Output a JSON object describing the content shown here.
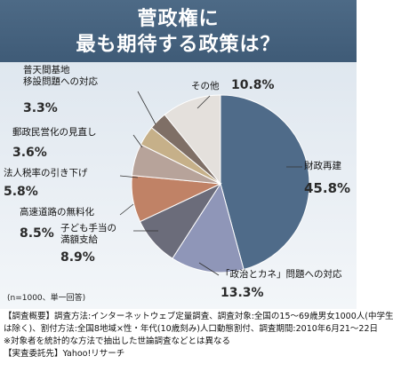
{
  "header": {
    "line1": "菅政権に",
    "line2": "最も期待する政策は？"
  },
  "colors": {
    "header_bg": "#46627f",
    "slice_fills": [
      "#4f6b89",
      "#8f96b8",
      "#6b6c7a",
      "#c08266",
      "#b7a39a",
      "#c6b089",
      "#7f6f66",
      "#e4e0dc"
    ],
    "percent_text": "#2a2a2a"
  },
  "note": "(n=1000、単一回答)",
  "footer": {
    "line1": "【調査概要】調査方法:インターネットウェブ定量調査、調査対象:全国の15〜69歳男女1000人(中学生",
    "line2": "は除く)、割付方法:全国8地域×性・年代(10歳刻み)人口動態割付、調査期間:2010年6月21〜22日",
    "line3": "※対象者を統計的な方法で抽出した世論調査などとは異なる",
    "line4": "【実査委託先】Yahoo!リサーチ"
  },
  "chart_data": {
    "type": "pie",
    "title": "菅政権に 最も期待する政策は？",
    "start": "12 o'clock, clockwise",
    "categories": [
      "財政再建",
      "「政治とカネ」問題への対応",
      "子ども手当の満額支給",
      "高速道路の無料化",
      "法人税率の引き下げ",
      "郵政民営化の見直し",
      "普天間基地移設問題への対応",
      "その他"
    ],
    "label_lines": [
      [
        "財政再建"
      ],
      [
        "「政治とカネ」問題への対応"
      ],
      [
        "子ども手当の",
        "満額支給"
      ],
      [
        "高速道路の無料化"
      ],
      [
        "法人税率の引き下げ"
      ],
      [
        "郵政民営化の見直し"
      ],
      [
        "普天間基地",
        "移設問題への対応"
      ],
      [
        "その他"
      ]
    ],
    "values": [
      45.8,
      13.3,
      8.9,
      8.5,
      5.8,
      3.6,
      3.3,
      10.8
    ],
    "value_labels": [
      "45.8%",
      "13.3%",
      "8.9%",
      "8.5%",
      "5.8%",
      "3.6%",
      "3.3%",
      "10.8%"
    ]
  }
}
